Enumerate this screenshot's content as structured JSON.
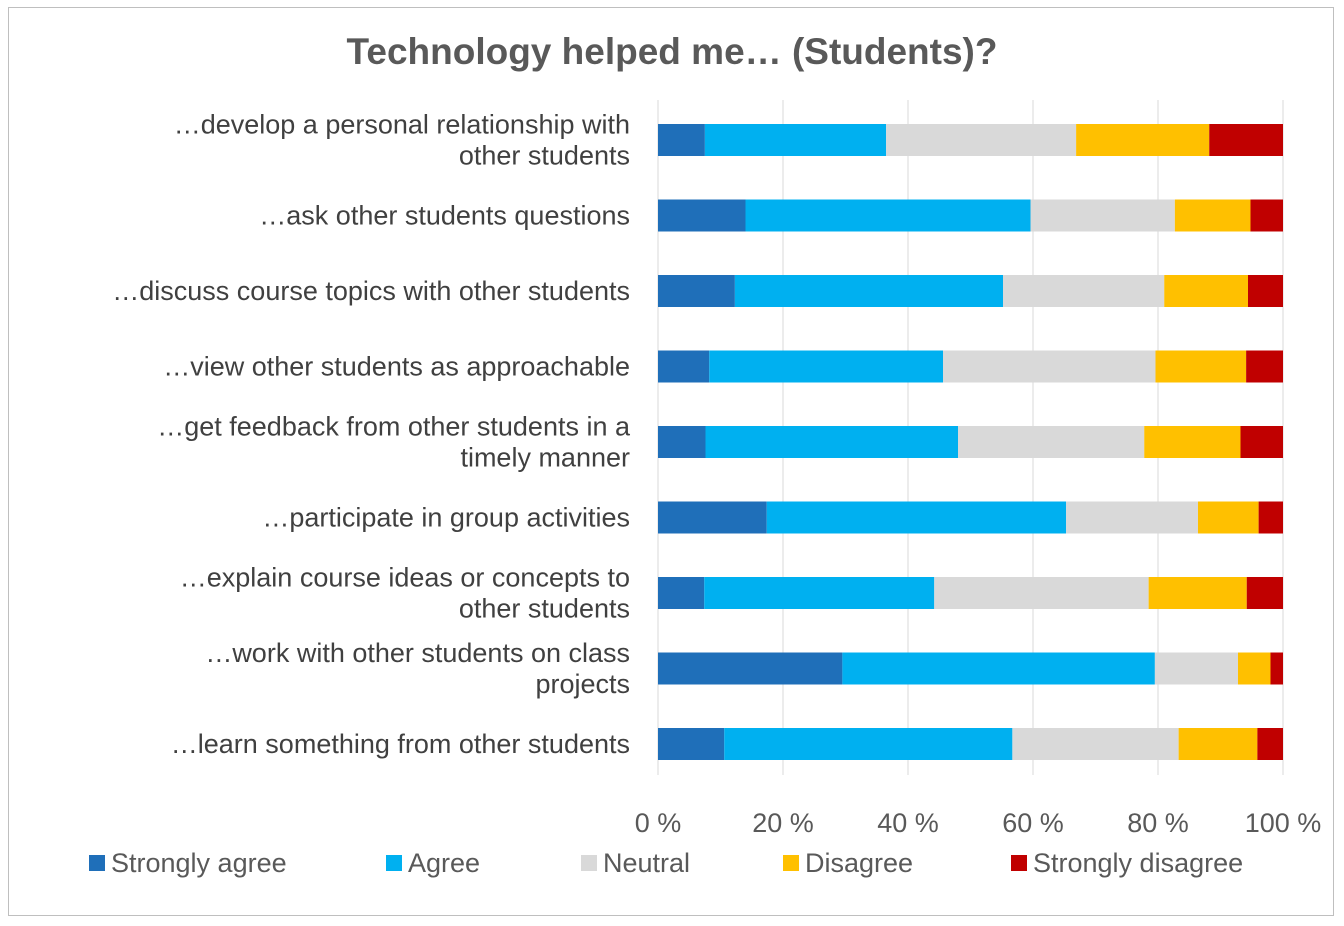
{
  "chart_data": {
    "type": "bar",
    "orientation": "horizontal",
    "stacked": "100%",
    "title": "Technology helped me… (Students)?",
    "categories": [
      [
        "…develop a personal relationship with",
        "other students"
      ],
      [
        "…ask other students questions"
      ],
      [
        "…discuss course topics with other students"
      ],
      [
        "…view other students as approachable"
      ],
      [
        "…get feedback from other students in a",
        "timely manner"
      ],
      [
        "…participate in group activities"
      ],
      [
        "…explain course ideas or concepts to",
        "other students"
      ],
      [
        "…work with other students on class",
        "projects"
      ],
      [
        "…learn something from other students"
      ]
    ],
    "series": [
      {
        "name": "Strongly agree",
        "color": "#1f6fb9",
        "values": [
          7.5,
          14,
          12.3,
          8.2,
          7.6,
          17.4,
          7.4,
          29.5,
          10.6
        ]
      },
      {
        "name": "Agree",
        "color": "#00b0f0",
        "values": [
          29.0,
          45.6,
          42.9,
          37.4,
          40.4,
          47.9,
          36.8,
          50.0,
          46.1
        ]
      },
      {
        "name": "Neutral",
        "color": "#d9d9d9",
        "values": [
          30.4,
          23.1,
          25.8,
          34.0,
          29.8,
          21.1,
          34.3,
          13.3,
          26.6
        ]
      },
      {
        "name": "Disagree",
        "color": "#ffc000",
        "values": [
          21.3,
          12.1,
          13.4,
          14.5,
          15.4,
          9.7,
          15.7,
          5.2,
          12.6
        ]
      },
      {
        "name": "Strongly disagree",
        "color": "#c00000",
        "values": [
          11.8,
          5.2,
          5.6,
          5.9,
          6.8,
          3.9,
          5.8,
          2.0,
          4.1
        ]
      }
    ],
    "xlim": [
      0,
      100
    ],
    "xticks": [
      0,
      20,
      40,
      60,
      80,
      100
    ],
    "tick_suffix": " %",
    "grid": true,
    "legend_position": "bottom"
  }
}
